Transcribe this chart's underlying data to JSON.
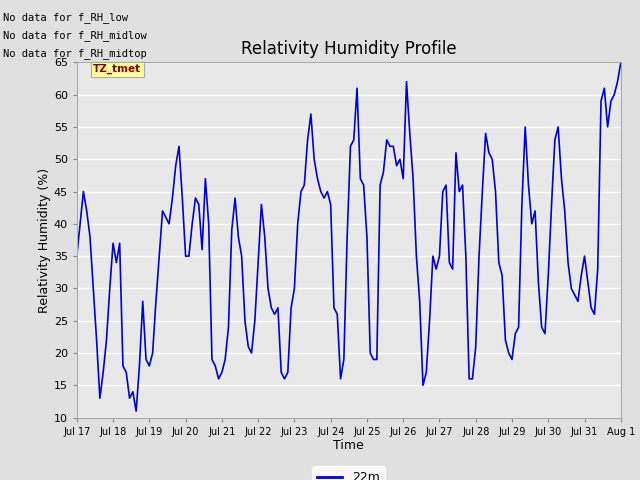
{
  "title": "Relativity Humidity Profile",
  "xlabel": "Time",
  "ylabel": "Relativity Humidity (%)",
  "ylim": [
    10,
    65
  ],
  "yticks": [
    10,
    15,
    20,
    25,
    30,
    35,
    40,
    45,
    50,
    55,
    60,
    65
  ],
  "line_color": "#0000dd",
  "line_width": 1.2,
  "legend_label": "22m",
  "legend_color": "#0000dd",
  "no_data_texts": [
    "No data for f_RH_low",
    "No data for f_RH_midlow",
    "No data for f_RH_midtop"
  ],
  "fig_bg_color": "#e0e0e0",
  "plot_bg_color": "#e8e8e8",
  "grid_color": "#ffffff",
  "x_tick_labels": [
    "Jul 17",
    "Jul 18",
    "Jul 19",
    "Jul 20",
    "Jul 21",
    "Jul 22",
    "Jul 23",
    "Jul 24",
    "Jul 25",
    "Jul 26",
    "Jul 27",
    "Jul 28",
    "Jul 29",
    "Jul 30",
    "Jul 31",
    "Aug 1"
  ],
  "rh_values": [
    35,
    40,
    45,
    42,
    38,
    30,
    22,
    13,
    17,
    22,
    30,
    37,
    34,
    37,
    18,
    17,
    13,
    14,
    11,
    18,
    28,
    19,
    18,
    20,
    28,
    35,
    42,
    41,
    40,
    44,
    49,
    52,
    44,
    35,
    35,
    40,
    44,
    43,
    36,
    47,
    40,
    19,
    18,
    16,
    17,
    19,
    24,
    39,
    44,
    38,
    35,
    25,
    21,
    20,
    25,
    34,
    43,
    38,
    30,
    27,
    26,
    27,
    17,
    16,
    17,
    27,
    30,
    40,
    45,
    46,
    53,
    57,
    50,
    47,
    45,
    44,
    45,
    43,
    27,
    26,
    16,
    19,
    38,
    52,
    53,
    61,
    47,
    46,
    38,
    20,
    19,
    19,
    46,
    48,
    53,
    52,
    52,
    49,
    50,
    47,
    62,
    54,
    47,
    35,
    28,
    15,
    17,
    25,
    35,
    33,
    35,
    45,
    46,
    34,
    33,
    51,
    45,
    46,
    35,
    16,
    16,
    21,
    35,
    45,
    54,
    51,
    50,
    45,
    34,
    32,
    22,
    20,
    19,
    23,
    24,
    43,
    55,
    46,
    40,
    42,
    31,
    24,
    23,
    32,
    43,
    53,
    55,
    47,
    42,
    34,
    30,
    29,
    28,
    32,
    35,
    31,
    27,
    26,
    33,
    59,
    61,
    55,
    59,
    60,
    62,
    65
  ]
}
